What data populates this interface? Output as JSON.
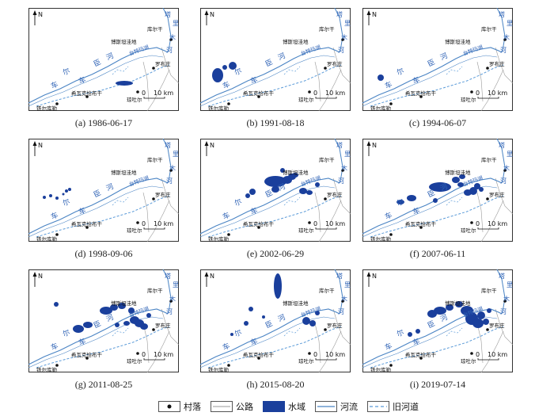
{
  "panels": [
    {
      "id": "a",
      "caption": "(a) 1986-06-17"
    },
    {
      "id": "b",
      "caption": "(b) 1991-08-18"
    },
    {
      "id": "c",
      "caption": "(c) 1994-06-07"
    },
    {
      "id": "d",
      "caption": "(d) 1998-09-06"
    },
    {
      "id": "e",
      "caption": "(e) 2002-06-29"
    },
    {
      "id": "f",
      "caption": "(f) 2007-06-11"
    },
    {
      "id": "g",
      "caption": "(g) 2011-08-25"
    },
    {
      "id": "h",
      "caption": "(h) 2015-08-20"
    },
    {
      "id": "i",
      "caption": "(i) 2019-07-14"
    }
  ],
  "map_labels": {
    "north": "N",
    "scale_zero": "0",
    "scale_value": "10 km",
    "village_korla": "库尔干",
    "village_busitan": "博斯坦洼地",
    "lake_taitema": "台特玛湖",
    "village_luobuzhuang": "罗布庄",
    "village_xiwake": "希瓦克恰布干",
    "village_qiongtuer": "琼吐尔",
    "village_tieerkule": "铁尔库勒",
    "river_che1": "车",
    "river_che2": "车",
    "river_er": "尔",
    "river_chen": "臣",
    "river_he": "河",
    "tarim_ta": "塔",
    "tarim_li": "里",
    "tarim_mu": "木",
    "tarim_he": "河"
  },
  "legend": {
    "village": "村落",
    "road": "公路",
    "water": "水域",
    "river": "河流",
    "old_channel": "旧河道"
  },
  "colors": {
    "water": "#1a3f9c",
    "river": "#4a84c4",
    "old_channel": "#5a9ad8",
    "road": "#9a9a9a",
    "text_blue": "#2f63b6"
  },
  "water_blobs": {
    "a": [
      [
        121,
        95,
        11,
        3
      ]
    ],
    "b": [
      [
        22,
        85,
        7,
        9
      ],
      [
        41,
        73,
        5,
        5
      ],
      [
        31,
        75,
        3,
        3
      ]
    ],
    "c": [
      [
        23,
        88,
        4,
        4
      ]
    ],
    "d": [
      [
        20,
        74,
        2,
        2
      ],
      [
        28,
        72,
        2,
        2
      ],
      [
        36,
        75,
        2,
        2
      ],
      [
        48,
        66,
        2,
        2
      ],
      [
        52,
        64,
        2,
        2
      ],
      [
        44,
        70,
        1.5,
        1.5
      ]
    ],
    "e": [
      [
        66,
        67,
        4,
        4
      ],
      [
        95,
        54,
        14,
        7
      ],
      [
        110,
        52,
        6,
        5
      ],
      [
        116,
        48,
        5,
        4
      ],
      [
        120,
        46,
        4,
        3
      ],
      [
        130,
        66,
        5,
        4
      ],
      [
        138,
        68,
        4,
        3
      ],
      [
        148,
        58,
        3,
        3
      ],
      [
        60,
        72,
        3,
        3
      ],
      [
        95,
        64,
        5,
        4
      ],
      [
        104,
        40,
        3,
        3
      ]
    ],
    "f": [
      [
        48,
        80,
        5,
        3
      ],
      [
        62,
        75,
        6,
        4
      ],
      [
        98,
        61,
        14,
        6
      ],
      [
        118,
        52,
        5,
        4
      ],
      [
        126,
        48,
        4,
        3
      ],
      [
        133,
        68,
        5,
        4
      ],
      [
        140,
        66,
        5,
        5
      ],
      [
        145,
        60,
        4,
        4
      ],
      [
        150,
        64,
        3,
        3
      ],
      [
        124,
        58,
        4,
        3
      ],
      [
        92,
        78,
        3,
        3
      ]
    ],
    "g": [
      [
        35,
        44,
        3,
        3
      ],
      [
        63,
        75,
        7,
        5
      ],
      [
        75,
        70,
        6,
        4
      ],
      [
        98,
        52,
        8,
        5
      ],
      [
        108,
        48,
        5,
        4
      ],
      [
        118,
        46,
        5,
        4
      ],
      [
        130,
        52,
        4,
        4
      ],
      [
        134,
        64,
        6,
        5
      ],
      [
        140,
        68,
        6,
        5
      ],
      [
        146,
        72,
        5,
        4
      ],
      [
        152,
        58,
        3,
        3
      ],
      [
        124,
        68,
        4,
        3
      ],
      [
        112,
        70,
        3,
        3
      ]
    ],
    "h": [
      [
        98,
        21,
        5,
        16
      ],
      [
        64,
        50,
        3,
        3
      ],
      [
        58,
        68,
        3,
        3
      ],
      [
        80,
        60,
        2,
        2
      ],
      [
        134,
        65,
        5,
        5
      ],
      [
        142,
        68,
        4,
        4
      ],
      [
        148,
        55,
        3,
        3
      ],
      [
        40,
        82,
        2,
        2
      ]
    ],
    "i": [
      [
        88,
        56,
        6,
        5
      ],
      [
        98,
        52,
        8,
        5
      ],
      [
        110,
        48,
        5,
        4
      ],
      [
        122,
        44,
        5,
        4
      ],
      [
        132,
        52,
        8,
        6
      ],
      [
        138,
        62,
        8,
        8
      ],
      [
        146,
        68,
        7,
        6
      ],
      [
        150,
        58,
        5,
        5
      ],
      [
        156,
        66,
        4,
        4
      ],
      [
        160,
        52,
        3,
        3
      ],
      [
        60,
        82,
        3,
        3
      ],
      [
        70,
        78,
        3,
        3
      ]
    ]
  }
}
